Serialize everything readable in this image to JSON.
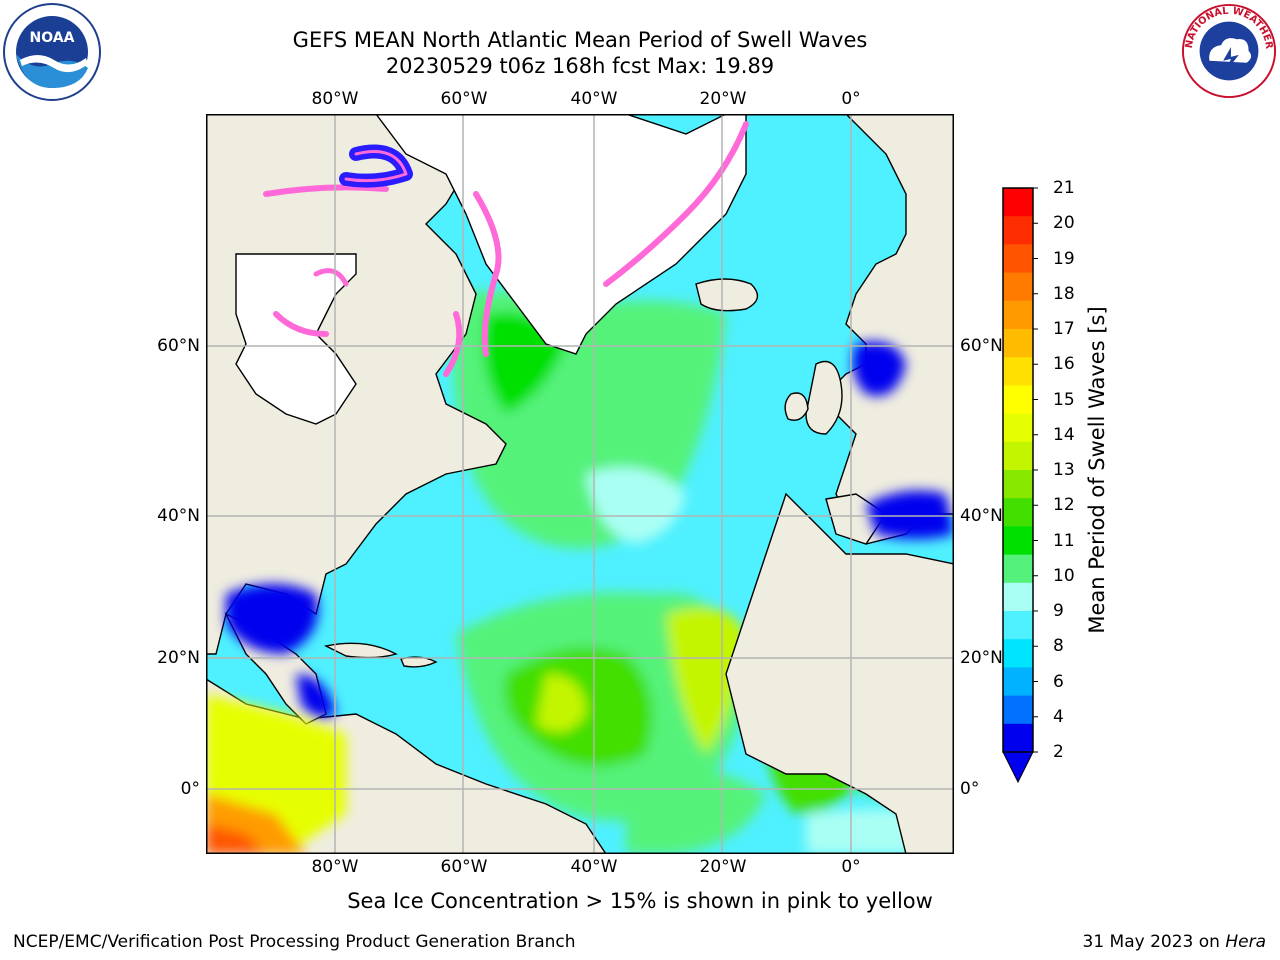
{
  "header": {
    "title_line1": "GEFS MEAN North Atlantic Mean Period of Swell Waves",
    "title_line2": "20230529 t06z 168h fcst   Max: 19.89"
  },
  "map": {
    "lon_ticks": [
      "80°W",
      "60°W",
      "40°W",
      "20°W",
      "0°"
    ],
    "lat_ticks_left": [
      "60°N",
      "40°N",
      "20°N",
      "0°"
    ],
    "lat_ticks_right": [
      "60°N",
      "40°N",
      "20°N",
      "0°"
    ],
    "land_color": "#efeddf",
    "ice_free_land_color": "#ffffff",
    "grid_color": "#b4b4b4"
  },
  "colorbar": {
    "title": "Mean Period of Swell Waves [s]",
    "labels": [
      "21",
      "20",
      "19",
      "18",
      "17",
      "16",
      "15",
      "14",
      "13",
      "12",
      "11",
      "10",
      "9",
      "8",
      "6",
      "4",
      "2"
    ],
    "colors": [
      "#ff0000",
      "#ff2e00",
      "#ff5500",
      "#ff7b00",
      "#ff9b00",
      "#ffbb00",
      "#ffe000",
      "#ffff00",
      "#e6ff00",
      "#c4f500",
      "#88e800",
      "#43df00",
      "#00e000",
      "#54f27a",
      "#aafff4",
      "#4ff0ff",
      "#00e4ff",
      "#00b2ff",
      "#0072ff",
      "#0000ee"
    ]
  },
  "notes": {
    "ice_note": "Sea Ice Concentration > 15% is shown in pink to yellow"
  },
  "footer": {
    "left": "NCEP/EMC/Verification Post Processing Product Generation Branch",
    "right_date": "31 May 2023 on",
    "right_host": "Hera"
  },
  "logos": {
    "noaa_text": "NOAA",
    "nws_text": "NATIONAL WEATHER SERVICE"
  }
}
